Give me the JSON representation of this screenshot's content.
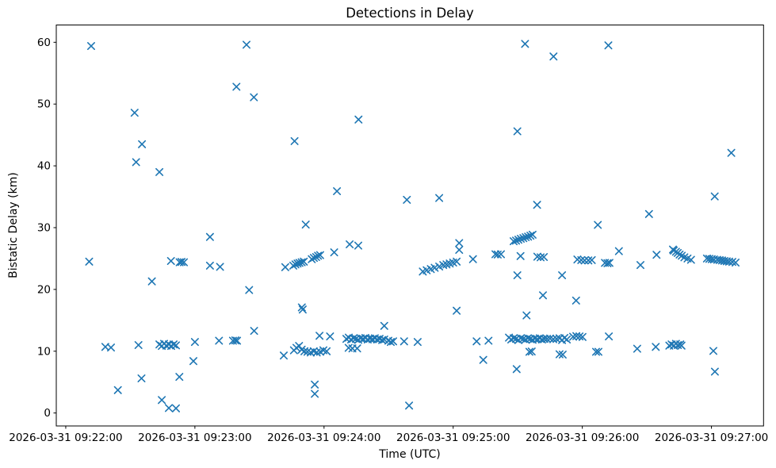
{
  "chart_data": {
    "type": "scatter",
    "title": "Detections in Delay",
    "xlabel": "Time (UTC)",
    "ylabel": "Bistatic Delay (km)",
    "x_axis": {
      "unit": "seconds after 2026-03-31 09:22:00 UTC",
      "tick_seconds": [
        0,
        60,
        120,
        180,
        240,
        300
      ],
      "tick_labels": [
        "2026-03-31 09:22:00",
        "2026-03-31 09:23:00",
        "2026-03-31 09:24:00",
        "2026-03-31 09:25:00",
        "2026-03-31 09:26:00",
        "2026-03-31 09:27:00"
      ],
      "lim_seconds": [
        -4.4,
        324.2
      ]
    },
    "y_axis": {
      "tick_values": [
        0,
        10,
        20,
        30,
        40,
        50,
        60
      ],
      "tick_labels": [
        "0",
        "10",
        "20",
        "30",
        "40",
        "50",
        "60"
      ],
      "lim": [
        -2.1,
        62.8
      ]
    },
    "grid": false,
    "legend": null,
    "marker": "x",
    "marker_color": "#1f77b4",
    "series": [
      {
        "name": "detections",
        "points_t_delay": [
          [
            11.8,
            59.4
          ],
          [
            32.0,
            48.6
          ],
          [
            35.4,
            43.5
          ],
          [
            32.7,
            40.6
          ],
          [
            43.5,
            39.0
          ],
          [
            10.9,
            24.5
          ],
          [
            48.9,
            24.6
          ],
          [
            52.9,
            24.4
          ],
          [
            53.8,
            24.45
          ],
          [
            54.9,
            24.4
          ],
          [
            40.0,
            21.3
          ],
          [
            18.4,
            10.7
          ],
          [
            21.0,
            10.6
          ],
          [
            33.8,
            11.0
          ],
          [
            43.5,
            11.1
          ],
          [
            44.6,
            10.85
          ],
          [
            45.7,
            11.2
          ],
          [
            46.8,
            10.9
          ],
          [
            47.9,
            11.1
          ],
          [
            49.0,
            10.85
          ],
          [
            50.1,
            11.1
          ],
          [
            51.2,
            10.95
          ],
          [
            60.0,
            11.5
          ],
          [
            59.3,
            8.4
          ],
          [
            35.2,
            5.6
          ],
          [
            52.8,
            5.85
          ],
          [
            24.2,
            3.7
          ],
          [
            44.6,
            2.1
          ],
          [
            47.9,
            0.8
          ],
          [
            51.2,
            0.75
          ],
          [
            84.0,
            59.6
          ],
          [
            79.3,
            52.8
          ],
          [
            87.4,
            51.1
          ],
          [
            106.3,
            44.0
          ],
          [
            126.0,
            35.9
          ],
          [
            111.5,
            30.5
          ],
          [
            67.0,
            28.5
          ],
          [
            67.0,
            23.85
          ],
          [
            71.7,
            23.65
          ],
          [
            102.0,
            23.6
          ],
          [
            105.7,
            23.85
          ],
          [
            106.7,
            24.05
          ],
          [
            107.7,
            24.2
          ],
          [
            108.6,
            24.3
          ],
          [
            109.6,
            24.4
          ],
          [
            110.6,
            24.5
          ],
          [
            114.3,
            24.9
          ],
          [
            115.3,
            25.1
          ],
          [
            116.3,
            25.25
          ],
          [
            117.2,
            25.45
          ],
          [
            118.2,
            25.55
          ],
          [
            124.7,
            26.0
          ],
          [
            85.2,
            19.9
          ],
          [
            109.7,
            17.1
          ],
          [
            110.1,
            16.75
          ],
          [
            87.5,
            13.3
          ],
          [
            71.2,
            11.7
          ],
          [
            77.7,
            11.7
          ],
          [
            78.8,
            11.75
          ],
          [
            79.6,
            11.7
          ],
          [
            101.3,
            9.3
          ],
          [
            106.0,
            10.15
          ],
          [
            107.2,
            10.55
          ],
          [
            108.4,
            10.85
          ],
          [
            109.6,
            10.25
          ],
          [
            110.9,
            10.0
          ],
          [
            112.3,
            9.9
          ],
          [
            113.8,
            9.8
          ],
          [
            115.2,
            10.0
          ],
          [
            116.6,
            9.8
          ],
          [
            118.2,
            9.9
          ],
          [
            119.7,
            10.15
          ],
          [
            121.2,
            10.0
          ],
          [
            117.9,
            12.5
          ],
          [
            122.8,
            12.4
          ],
          [
            115.7,
            4.6
          ],
          [
            115.7,
            3.1
          ],
          [
            136.0,
            47.5
          ],
          [
            158.5,
            34.5
          ],
          [
            173.5,
            34.8
          ],
          [
            131.9,
            27.3
          ],
          [
            135.9,
            27.1
          ],
          [
            182.8,
            27.5
          ],
          [
            182.8,
            26.4
          ],
          [
            189.2,
            24.9
          ],
          [
            165.9,
            22.9
          ],
          [
            167.7,
            23.1
          ],
          [
            169.6,
            23.3
          ],
          [
            171.4,
            23.5
          ],
          [
            173.5,
            23.7
          ],
          [
            175.4,
            23.95
          ],
          [
            176.9,
            24.05
          ],
          [
            178.4,
            24.2
          ],
          [
            180.0,
            24.35
          ],
          [
            181.6,
            24.5
          ],
          [
            181.6,
            16.55
          ],
          [
            148.0,
            14.1
          ],
          [
            130.4,
            12.0
          ],
          [
            131.5,
            12.2
          ],
          [
            132.6,
            11.9
          ],
          [
            133.7,
            12.1
          ],
          [
            134.8,
            12.0
          ],
          [
            135.9,
            11.85
          ],
          [
            137.0,
            12.1
          ],
          [
            138.1,
            12.0
          ],
          [
            139.2,
            12.15
          ],
          [
            140.3,
            11.9
          ],
          [
            141.4,
            12.05
          ],
          [
            142.5,
            11.95
          ],
          [
            143.6,
            12.1
          ],
          [
            144.7,
            11.9
          ],
          [
            145.8,
            12.0
          ],
          [
            147.0,
            11.8
          ],
          [
            148.0,
            11.9
          ],
          [
            149.9,
            11.7
          ],
          [
            151.0,
            11.5
          ],
          [
            152.1,
            11.6
          ],
          [
            157.2,
            11.6
          ],
          [
            163.5,
            11.5
          ],
          [
            131.4,
            10.55
          ],
          [
            133.2,
            10.45
          ],
          [
            135.4,
            10.45
          ],
          [
            190.9,
            11.6
          ],
          [
            196.4,
            11.7
          ],
          [
            194.0,
            8.6
          ],
          [
            159.5,
            1.2
          ],
          [
            213.4,
            59.75
          ],
          [
            252.1,
            59.5
          ],
          [
            226.6,
            57.7
          ],
          [
            209.8,
            45.6
          ],
          [
            219.0,
            33.7
          ],
          [
            247.2,
            30.45
          ],
          [
            208.1,
            27.8
          ],
          [
            209.2,
            27.9
          ],
          [
            210.3,
            28.05
          ],
          [
            211.4,
            28.2
          ],
          [
            212.6,
            28.3
          ],
          [
            213.7,
            28.45
          ],
          [
            214.8,
            28.55
          ],
          [
            215.9,
            28.7
          ],
          [
            216.9,
            28.85
          ],
          [
            199.6,
            25.7
          ],
          [
            200.7,
            25.65
          ],
          [
            202.2,
            25.7
          ],
          [
            211.3,
            25.4
          ],
          [
            219.1,
            25.3
          ],
          [
            220.6,
            25.2
          ],
          [
            222.1,
            25.25
          ],
          [
            237.7,
            24.85
          ],
          [
            239.5,
            24.75
          ],
          [
            241.1,
            24.7
          ],
          [
            242.8,
            24.7
          ],
          [
            244.4,
            24.75
          ],
          [
            250.5,
            24.3
          ],
          [
            251.7,
            24.25
          ],
          [
            252.6,
            24.3
          ],
          [
            257.0,
            26.2
          ],
          [
            209.8,
            22.3
          ],
          [
            230.6,
            22.3
          ],
          [
            221.7,
            19.05
          ],
          [
            237.1,
            18.2
          ],
          [
            214.1,
            15.8
          ],
          [
            205.9,
            12.2
          ],
          [
            207.0,
            11.9
          ],
          [
            208.1,
            12.1
          ],
          [
            209.2,
            12.0
          ],
          [
            210.3,
            11.8
          ],
          [
            211.4,
            12.1
          ],
          [
            212.5,
            12.0
          ],
          [
            213.6,
            11.9
          ],
          [
            214.7,
            12.1
          ],
          [
            215.8,
            12.0
          ],
          [
            216.9,
            11.85
          ],
          [
            218.0,
            12.05
          ],
          [
            219.1,
            11.95
          ],
          [
            220.2,
            12.1
          ],
          [
            221.3,
            11.9
          ],
          [
            222.4,
            12.0
          ],
          [
            223.6,
            12.0
          ],
          [
            225.0,
            12.05
          ],
          [
            226.5,
            11.95
          ],
          [
            228.0,
            12.0
          ],
          [
            229.4,
            12.1
          ],
          [
            230.6,
            11.8
          ],
          [
            231.7,
            12.15
          ],
          [
            232.8,
            11.9
          ],
          [
            235.7,
            12.35
          ],
          [
            237.2,
            12.45
          ],
          [
            238.7,
            12.4
          ],
          [
            240.1,
            12.3
          ],
          [
            252.3,
            12.4
          ],
          [
            215.4,
            9.9
          ],
          [
            216.5,
            9.95
          ],
          [
            229.4,
            9.5
          ],
          [
            230.9,
            9.45
          ],
          [
            246.4,
            9.9
          ],
          [
            247.5,
            9.9
          ],
          [
            209.5,
            7.1
          ],
          [
            309.2,
            42.1
          ],
          [
            301.5,
            35.05
          ],
          [
            271.0,
            32.2
          ],
          [
            274.5,
            25.6
          ],
          [
            267.0,
            23.95
          ],
          [
            282.1,
            26.45
          ],
          [
            282.5,
            26.3
          ],
          [
            283.5,
            26.1
          ],
          [
            284.3,
            25.9
          ],
          [
            285.2,
            25.65
          ],
          [
            286.2,
            25.45
          ],
          [
            287.4,
            25.2
          ],
          [
            288.9,
            25.0
          ],
          [
            290.5,
            24.8
          ],
          [
            297.9,
            25.0
          ],
          [
            299.0,
            24.95
          ],
          [
            300.1,
            24.9
          ],
          [
            301.2,
            24.85
          ],
          [
            302.7,
            24.8
          ],
          [
            303.8,
            24.75
          ],
          [
            304.9,
            24.7
          ],
          [
            306.0,
            24.6
          ],
          [
            307.1,
            24.55
          ],
          [
            308.2,
            24.5
          ],
          [
            309.7,
            24.45
          ],
          [
            311.2,
            24.35
          ],
          [
            265.5,
            10.4
          ],
          [
            274.1,
            10.7
          ],
          [
            280.4,
            10.9
          ],
          [
            281.5,
            11.1
          ],
          [
            282.5,
            10.9
          ],
          [
            283.5,
            11.2
          ],
          [
            284.4,
            11.0
          ],
          [
            285.5,
            11.1
          ],
          [
            286.1,
            10.9
          ],
          [
            300.9,
            10.05
          ],
          [
            301.6,
            6.7
          ]
        ]
      }
    ]
  }
}
